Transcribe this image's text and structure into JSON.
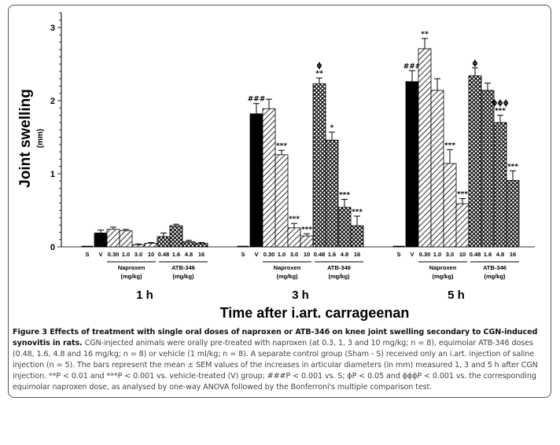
{
  "chart_data": {
    "type": "bar",
    "ylabel": "Joint swelling",
    "ylabel_unit": "(mm)",
    "xlabel": "Time after i.art. carrageenan",
    "ylim": [
      0,
      3
    ],
    "yticks": [
      "0",
      "1",
      "2",
      "3"
    ],
    "categories": [
      "S",
      "V",
      "0.30",
      "1.0",
      "3.0",
      "10",
      "0.48",
      "1.6",
      "4.8",
      "16"
    ],
    "group_labels": {
      "naproxen": "Naproxen",
      "naproxen_unit": "(mg/kg)",
      "atb": "ATB-346",
      "atb_unit": "(mg/kg)"
    },
    "fills": [
      "black",
      "black",
      "hatch",
      "hatch",
      "hatch",
      "hatch",
      "cross",
      "cross",
      "cross",
      "cross"
    ],
    "series": [
      {
        "name": "1 h",
        "values": [
          0.01,
          0.19,
          0.24,
          0.22,
          0.03,
          0.05,
          0.14,
          0.29,
          0.07,
          0.05
        ],
        "errors": [
          0.0,
          0.04,
          0.03,
          0.02,
          0.01,
          0.01,
          0.05,
          0.02,
          0.02,
          0.01
        ],
        "annotations": [
          "",
          "",
          "",
          "",
          "",
          "",
          "",
          "",
          "",
          ""
        ]
      },
      {
        "name": "3 h",
        "values": [
          0.01,
          1.82,
          1.89,
          1.26,
          0.26,
          0.15,
          2.23,
          1.46,
          0.54,
          0.29
        ],
        "errors": [
          0.0,
          0.14,
          0.13,
          0.06,
          0.06,
          0.03,
          0.08,
          0.11,
          0.11,
          0.13
        ],
        "annotations": [
          "",
          "###",
          "",
          "***",
          "***",
          "***",
          "ϕ\n**",
          "*",
          "***",
          "***"
        ]
      },
      {
        "name": "5 h",
        "values": [
          0.01,
          2.26,
          2.71,
          2.14,
          1.14,
          0.59,
          2.34,
          2.14,
          1.7,
          0.91
        ],
        "errors": [
          0.0,
          0.15,
          0.14,
          0.16,
          0.19,
          0.07,
          0.11,
          0.1,
          0.1,
          0.13
        ],
        "annotations": [
          "",
          "###",
          "**",
          "",
          "***",
          "***",
          "ϕ",
          "",
          "ϕϕϕ\n***",
          "***"
        ]
      }
    ]
  },
  "caption": {
    "title": "Figure 3 Effects of treatment with single oral doses of naproxen or ATB-346 on knee joint swelling secondary to CGN-induced synovitis in rats.",
    "body": " CGN-injected animals were orally pre-treated with naproxen (at 0.3, 1, 3 and 10 mg/kg; n = 8), equimolar ATB-346 doses (0.48, 1.6, 4.8 and 16 mg/kg; n = 8) or vehicle (1 ml/kg; n = 8). A separate control group (Sham - S) received only an i.art. injection of saline injection (n = 5). The bars represent the mean ± SEM values of the increases in articular diameters (in mm) measured 1, 3 and 5 h after CGN injection. **P < 0.01 and ***P < 0.001 vs. vehicle-treated (V) group; ###P < 0.001 vs. S; ϕP < 0.05 and ϕϕϕP < 0.001 vs. the corresponding equimolar naproxen dose, as analysed by one-way ANOVA followed by the Bonferroni's multiple comparison test."
  }
}
